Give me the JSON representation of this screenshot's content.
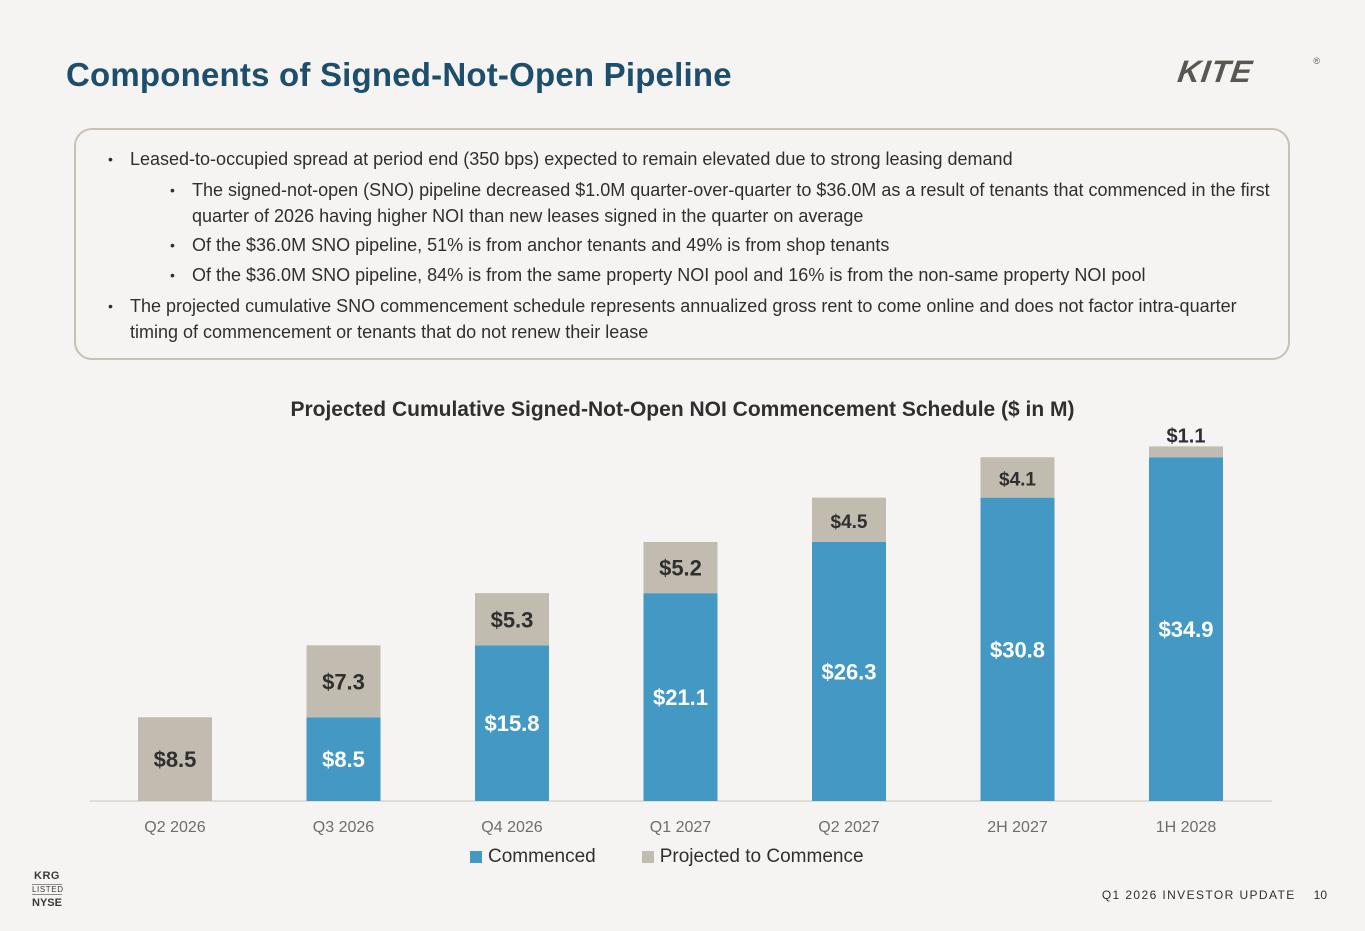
{
  "page": {
    "title": "Components of Signed-Not-Open Pipeline",
    "logo_text": "KITE",
    "logo_mark": "®"
  },
  "notes": [
    "Leased-to-occupied spread at period end (350 bps) expected to remain elevated due to strong leasing demand",
    "The signed-not-open (SNO) pipeline decreased $1.0M quarter-over-quarter to $36.0M as a result of tenants that commenced in the first quarter of 2026 having higher NOI than new leases signed in the quarter on average",
    "Of the $36.0M SNO pipeline, 51% is from anchor tenants and 49% is from shop tenants",
    "Of the $36.0M SNO pipeline, 84% is from the same property NOI pool and 16% is from the non-same property NOI pool",
    "The projected cumulative SNO commencement schedule represents annualized gross rent to come online and does not factor intra-quarter timing of commencement or tenants that do not renew their lease"
  ],
  "chart_data": {
    "type": "bar",
    "stacked": true,
    "title": "Projected Cumulative Signed-Not-Open NOI Commencement Schedule ($ in M)",
    "categories": [
      "Q2 2026",
      "Q3 2026",
      "Q4 2026",
      "Q1 2027",
      "Q2 2027",
      "2H 2027",
      "1H 2028"
    ],
    "series": [
      {
        "name": "Commenced",
        "color": "#4499c4",
        "values": [
          0,
          8.5,
          15.8,
          21.1,
          26.3,
          30.8,
          34.9
        ],
        "labels": [
          "",
          "$8.5",
          "$15.8",
          "$21.1",
          "$26.3",
          "$30.8",
          "$34.9"
        ]
      },
      {
        "name": "Projected to Commence",
        "color": "#c2bbb0",
        "values": [
          8.5,
          7.3,
          5.3,
          5.2,
          4.5,
          4.1,
          1.1
        ],
        "labels": [
          "$8.5",
          "$7.3",
          "$5.3",
          "$5.2",
          "$4.5",
          "$4.1",
          "$1.1"
        ]
      }
    ],
    "ylim": [
      0,
      36
    ],
    "grid": false,
    "legend": "bottom"
  },
  "exchange": {
    "ticker": "KRG",
    "listed": "LISTED",
    "exchange_name": "NYSE"
  },
  "footer": {
    "label": "Q1 2026 INVESTOR UPDATE",
    "page_number": "10"
  }
}
